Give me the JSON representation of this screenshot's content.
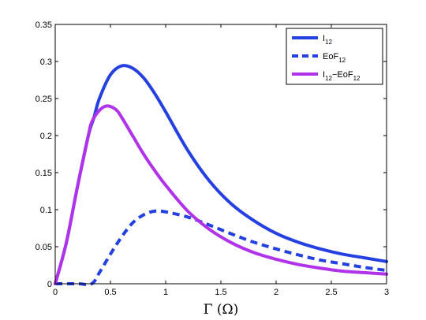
{
  "chart_data": {
    "type": "line",
    "title": "",
    "xlabel": "Γ (Ω)",
    "ylabel": "",
    "xlim": [
      0,
      3
    ],
    "ylim": [
      0,
      0.35
    ],
    "xticks": [
      0,
      0.5,
      1,
      1.5,
      2,
      2.5,
      3
    ],
    "xtick_labels": [
      "0",
      "0.5",
      "1",
      "1.5",
      "2",
      "2.5",
      "3"
    ],
    "yticks": [
      0,
      0.05,
      0.1,
      0.15,
      0.2,
      0.25,
      0.3,
      0.35
    ],
    "ytick_labels": [
      "0",
      "0.05",
      "0.1",
      "0.15",
      "0.2",
      "0.25",
      "0.3",
      "0.35"
    ],
    "grid": false,
    "legend_position": "top-right",
    "series": [
      {
        "name": "I12",
        "name_main": "I",
        "name_sub": "12",
        "style": "solid",
        "color": "#2440e0",
        "x": [
          0,
          0.1,
          0.2,
          0.3,
          0.35,
          0.4,
          0.5,
          0.6,
          0.7,
          0.8,
          0.9,
          1.0,
          1.2,
          1.4,
          1.6,
          1.8,
          2.0,
          2.2,
          2.4,
          2.6,
          2.8,
          3.0
        ],
        "y": [
          0,
          0.055,
          0.13,
          0.2,
          0.224,
          0.25,
          0.282,
          0.294,
          0.291,
          0.278,
          0.257,
          0.232,
          0.18,
          0.138,
          0.107,
          0.085,
          0.068,
          0.056,
          0.047,
          0.04,
          0.035,
          0.03
        ]
      },
      {
        "name": "EoF12",
        "name_main": "EoF",
        "name_sub": "12",
        "style": "dashed",
        "color": "#2440e0",
        "x": [
          0,
          0.2,
          0.33,
          0.4,
          0.5,
          0.6,
          0.7,
          0.8,
          0.9,
          1.0,
          1.2,
          1.4,
          1.6,
          1.8,
          2.0,
          2.2,
          2.4,
          2.6,
          2.8,
          3.0
        ],
        "y": [
          0,
          0,
          0,
          0.015,
          0.04,
          0.063,
          0.082,
          0.093,
          0.098,
          0.097,
          0.09,
          0.079,
          0.067,
          0.056,
          0.047,
          0.039,
          0.032,
          0.027,
          0.022,
          0.018
        ]
      },
      {
        "name": "I12−EoF12",
        "name_main": "I",
        "name_sub": "12",
        "name_mid": "−EoF",
        "name_sub2": "12",
        "style": "solid",
        "color": "#b033ea",
        "x": [
          0,
          0.1,
          0.2,
          0.3,
          0.33,
          0.4,
          0.47,
          0.55,
          0.6,
          0.7,
          0.8,
          0.9,
          1.0,
          1.2,
          1.4,
          1.6,
          1.8,
          2.0,
          2.2,
          2.4,
          2.6,
          2.8,
          3.0
        ],
        "y": [
          0,
          0.055,
          0.13,
          0.2,
          0.218,
          0.234,
          0.24,
          0.235,
          0.225,
          0.2,
          0.175,
          0.153,
          0.133,
          0.098,
          0.073,
          0.055,
          0.042,
          0.033,
          0.026,
          0.021,
          0.017,
          0.015,
          0.013
        ]
      }
    ]
  }
}
